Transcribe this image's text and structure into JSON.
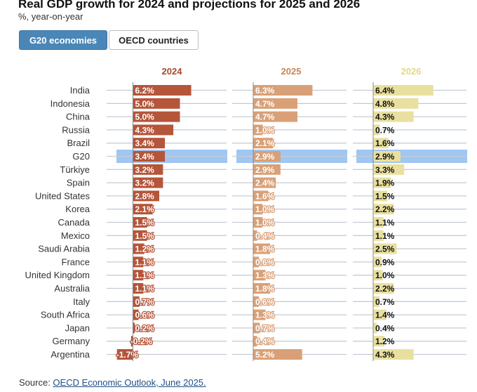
{
  "header": {
    "title": "Real GDP growth for 2024 and projections for 2025 and 2026",
    "subtitle": "%, year-on-year"
  },
  "tabs": [
    {
      "label": "G20 economies",
      "active": true
    },
    {
      "label": "OECD countries",
      "active": false
    }
  ],
  "source": {
    "prefix": "Source: ",
    "link_text": "OECD Economic Outlook, June 2025."
  },
  "chart_data": {
    "type": "bar",
    "orientation": "horizontal",
    "title": "Real GDP growth for 2024 and projections for 2025 and 2026",
    "ylabel": "%, year-on-year",
    "highlighted_category": "G20",
    "categories": [
      "India",
      "Indonesia",
      "China",
      "Russia",
      "Brazil",
      "G20",
      "Türkiye",
      "Spain",
      "United States",
      "Korea",
      "Canada",
      "Mexico",
      "Saudi Arabia",
      "France",
      "United Kingdom",
      "Australia",
      "Italy",
      "South Africa",
      "Japan",
      "Germany",
      "Argentina"
    ],
    "series": [
      {
        "name": "2024",
        "color": "#b5553a",
        "values": [
          6.2,
          5.0,
          5.0,
          4.3,
          3.4,
          3.4,
          3.2,
          3.2,
          2.8,
          2.1,
          1.5,
          1.5,
          1.2,
          1.1,
          1.1,
          1.1,
          0.7,
          0.6,
          0.2,
          -0.2,
          -1.7
        ],
        "labels": [
          "6.2%",
          "5.0%",
          "5.0%",
          "4.3%",
          "3.4%",
          "3.4%",
          "3.2%",
          "3.2%",
          "2.8%",
          "2.1%",
          "1.5%",
          "1.5%",
          "1.2%",
          "1.1%",
          "1.1%",
          "1.1%",
          "0.7%",
          "0.6%",
          "0.2%",
          "-0.2%",
          "-1.7%"
        ]
      },
      {
        "name": "2025",
        "color": "#d9a077",
        "values": [
          6.3,
          4.7,
          4.7,
          1.0,
          2.1,
          2.9,
          2.9,
          2.4,
          1.6,
          1.0,
          1.0,
          0.4,
          1.8,
          0.6,
          1.3,
          1.8,
          0.6,
          1.3,
          0.7,
          0.4,
          5.2
        ],
        "labels": [
          "6.3%",
          "4.7%",
          "4.7%",
          "1.0%",
          "2.1%",
          "2.9%",
          "2.9%",
          "2.4%",
          "1.6%",
          "1.0%",
          "1.0%",
          "0.4%",
          "1.8%",
          "0.6%",
          "1.3%",
          "1.8%",
          "0.6%",
          "1.3%",
          "0.7%",
          "0.4%",
          "5.2%"
        ]
      },
      {
        "name": "2026",
        "color": "#e9e09f",
        "values": [
          6.4,
          4.8,
          4.3,
          0.7,
          1.6,
          2.9,
          3.3,
          1.9,
          1.5,
          2.2,
          1.1,
          1.1,
          2.5,
          0.9,
          1.0,
          2.2,
          0.7,
          1.4,
          0.4,
          1.2,
          4.3
        ],
        "labels": [
          "6.4%",
          "4.8%",
          "4.3%",
          "0.7%",
          "1.6%",
          "2.9%",
          "3.3%",
          "1.9%",
          "1.5%",
          "2.2%",
          "1.1%",
          "1.1%",
          "2.5%",
          "0.9%",
          "1.0%",
          "2.2%",
          "0.7%",
          "1.4%",
          "0.4%",
          "1.2%",
          "4.3%"
        ]
      }
    ],
    "highlight_color": "#8fbcee"
  }
}
